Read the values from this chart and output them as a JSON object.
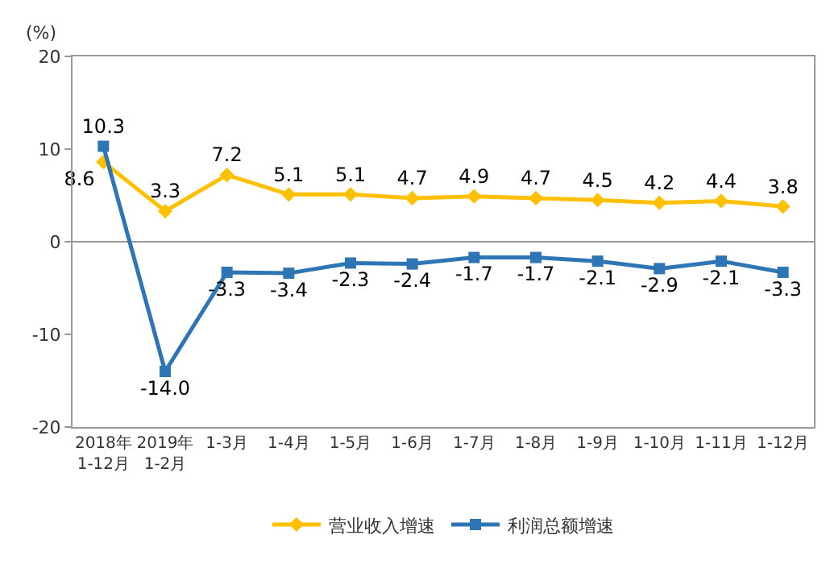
{
  "chart_data": {
    "type": "line",
    "ylabel": "(%)",
    "categories": [
      "2018年\n1-12月",
      "2019年\n1-2月",
      "1-3月",
      "1-4月",
      "1-5月",
      "1-6月",
      "1-7月",
      "1-8月",
      "1-9月",
      "1-10月",
      "1-11月",
      "1-12月"
    ],
    "series": [
      {
        "name": "营业收入增速",
        "color": "#ffc000",
        "marker": "diamond",
        "values": [
          8.6,
          3.3,
          7.2,
          5.1,
          5.1,
          4.7,
          4.9,
          4.7,
          4.5,
          4.2,
          4.4,
          3.8
        ]
      },
      {
        "name": "利润总额增速",
        "color": "#2e75b6",
        "marker": "square",
        "values": [
          10.3,
          -14.0,
          -3.3,
          -3.4,
          -2.3,
          -2.4,
          -1.7,
          -1.7,
          -2.1,
          -2.9,
          -2.1,
          -3.3
        ]
      }
    ],
    "ylim": [
      -20,
      20
    ],
    "yticks": [
      -20,
      -10,
      0,
      10,
      20
    ],
    "value_labels": [
      [
        "8.6",
        "3.3",
        "7.2",
        "5.1",
        "5.1",
        "4.7",
        "4.9",
        "4.7",
        "4.5",
        "4.2",
        "4.4",
        "3.8"
      ],
      [
        "10.3",
        "-14.0",
        "-3.3",
        "-3.4",
        "-2.3",
        "-2.4",
        "-1.7",
        "-1.7",
        "-2.1",
        "-2.9",
        "-2.1",
        "-3.3"
      ]
    ],
    "ref_lines": [
      {
        "axis": "y",
        "value": 0,
        "color": "#999999"
      }
    ],
    "legend": "bottom"
  }
}
